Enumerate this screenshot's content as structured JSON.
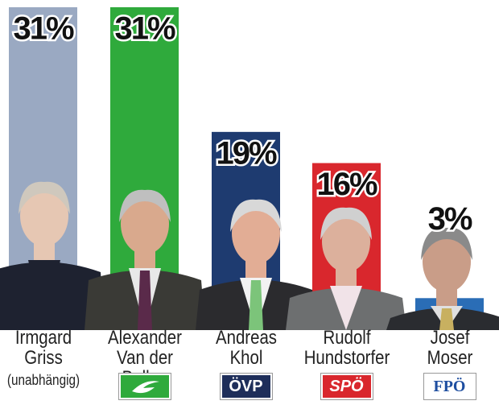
{
  "chart_data": {
    "type": "bar",
    "categories": [
      "Irmgard\nGriss",
      "Alexander\nVan der Bellen",
      "Andreas\nKhol",
      "Rudolf\nHundstorfer",
      "Josef\nMoser"
    ],
    "parties": [
      "(unabhängig)",
      null,
      "ÖVP",
      "SPÖ",
      "FPÖ"
    ],
    "values": [
      31,
      31,
      19,
      16,
      3
    ],
    "value_labels": [
      "31%",
      "31%",
      "19%",
      "16%",
      "3%"
    ],
    "colors": [
      "#9aa9c2",
      "#2faa3c",
      "#1e3b70",
      "#d9272d",
      "#2a6db6"
    ]
  }
}
